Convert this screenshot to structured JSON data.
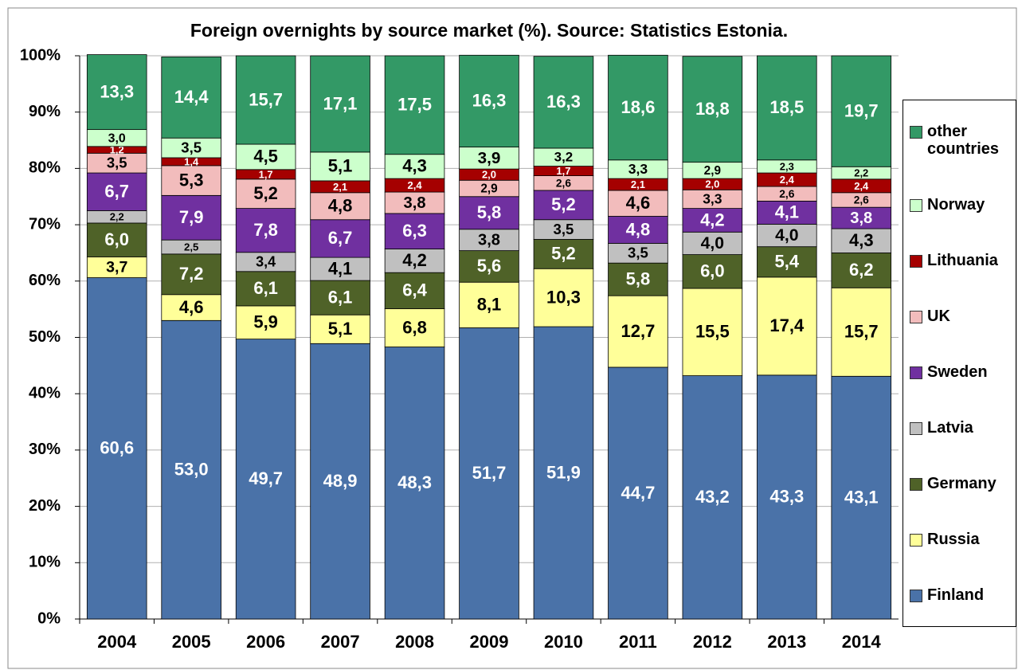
{
  "chart_data": {
    "type": "stacked_bar",
    "title": "Foreign overnights by source market (%). Source: Statistics Estonia.",
    "categories": [
      "2004",
      "2005",
      "2006",
      "2007",
      "2008",
      "2009",
      "2010",
      "2011",
      "2012",
      "2013",
      "2014"
    ],
    "ylim": [
      0,
      100
    ],
    "yticks": [
      {
        "value": 0,
        "label": "0%"
      },
      {
        "value": 10,
        "label": "10%"
      },
      {
        "value": 20,
        "label": "20%"
      },
      {
        "value": 30,
        "label": "30%"
      },
      {
        "value": 40,
        "label": "40%"
      },
      {
        "value": 50,
        "label": "50%"
      },
      {
        "value": 60,
        "label": "60%"
      },
      {
        "value": 70,
        "label": "70%"
      },
      {
        "value": 80,
        "label": "80%"
      },
      {
        "value": 90,
        "label": "90%"
      },
      {
        "value": 100,
        "label": "100%"
      }
    ],
    "grid": true,
    "legend": "right",
    "series": [
      {
        "name": "Finland",
        "color": "#4a72a8",
        "values": [
          60.6,
          53.0,
          49.7,
          48.9,
          48.3,
          51.7,
          51.9,
          44.7,
          43.2,
          43.3,
          43.1
        ],
        "value_labels": [
          "60,6",
          "53,0",
          "49,7",
          "48,9",
          "48,3",
          "51,7",
          "51,9",
          "44,7",
          "43,2",
          "43,3",
          "43,1"
        ]
      },
      {
        "name": "Russia",
        "color": "#ffff99",
        "values": [
          3.7,
          4.6,
          5.9,
          5.1,
          6.8,
          8.1,
          10.3,
          12.7,
          15.5,
          17.4,
          15.7
        ],
        "value_labels": [
          "3,7",
          "4,6",
          "5,9",
          "5,1",
          "6,8",
          "8,1",
          "10,3",
          "12,7",
          "15,5",
          "17,4",
          "15,7"
        ]
      },
      {
        "name": "Germany",
        "color": "#4f6228",
        "values": [
          6.0,
          7.2,
          6.1,
          6.1,
          6.4,
          5.6,
          5.2,
          5.8,
          6.0,
          5.4,
          6.2
        ],
        "value_labels": [
          "6,0",
          "7,2",
          "6,1",
          "6,1",
          "6,4",
          "5,6",
          "5,2",
          "5,8",
          "6,0",
          "5,4",
          "6,2"
        ]
      },
      {
        "name": "Latvia",
        "color": "#c0c0c0",
        "values": [
          2.2,
          2.5,
          3.4,
          4.1,
          4.2,
          3.8,
          3.5,
          3.5,
          4.0,
          4.0,
          4.3
        ],
        "value_labels": [
          "2,2",
          "2,5",
          "3,4",
          "4,1",
          "4,2",
          "3,8",
          "3,5",
          "3,5",
          "4,0",
          "4,0",
          "4,3"
        ]
      },
      {
        "name": "Sweden",
        "color": "#7030a0",
        "values": [
          6.7,
          7.9,
          7.8,
          6.7,
          6.3,
          5.8,
          5.2,
          4.8,
          4.2,
          4.1,
          3.8
        ],
        "value_labels": [
          "6,7",
          "7,9",
          "7,8",
          "6,7",
          "6,3",
          "5,8",
          "5,2",
          "4,8",
          "4,2",
          "4,1",
          "3,8"
        ]
      },
      {
        "name": "UK",
        "color": "#f2bcbc",
        "values": [
          3.5,
          5.3,
          5.2,
          4.8,
          3.8,
          2.9,
          2.6,
          4.6,
          3.3,
          2.6,
          2.6
        ],
        "value_labels": [
          "3,5",
          "5,3",
          "5,2",
          "4,8",
          "3,8",
          "2,9",
          "2,6",
          "4,6",
          "3,3",
          "2,6",
          "2,6"
        ]
      },
      {
        "name": "Lithuania",
        "color": "#a50000",
        "values": [
          1.2,
          1.4,
          1.7,
          2.1,
          2.4,
          2.0,
          1.7,
          2.1,
          2.0,
          2.4,
          2.4
        ],
        "value_labels": [
          "1,2",
          "1,4",
          "1,7",
          "2,1",
          "2,4",
          "2,0",
          "1,7",
          "2,1",
          "2,0",
          "2,4",
          "2,4"
        ]
      },
      {
        "name": "Norway",
        "color": "#ccffcc",
        "values": [
          3.0,
          3.5,
          4.5,
          5.1,
          4.3,
          3.9,
          3.2,
          3.3,
          2.9,
          2.3,
          2.2
        ],
        "value_labels": [
          "3,0",
          "3,5",
          "4,5",
          "5,1",
          "4,3",
          "3,9",
          "3,2",
          "3,3",
          "2,9",
          "2,3",
          "2,2"
        ]
      },
      {
        "name": "other countries",
        "color": "#339966",
        "values": [
          13.3,
          14.4,
          15.7,
          17.1,
          17.5,
          16.3,
          16.3,
          18.6,
          18.8,
          18.5,
          19.7
        ],
        "value_labels": [
          "13,3",
          "14,4",
          "15,7",
          "17,1",
          "17,5",
          "16,3",
          "16,3",
          "18,6",
          "18,8",
          "18,5",
          "19,7"
        ]
      }
    ]
  }
}
